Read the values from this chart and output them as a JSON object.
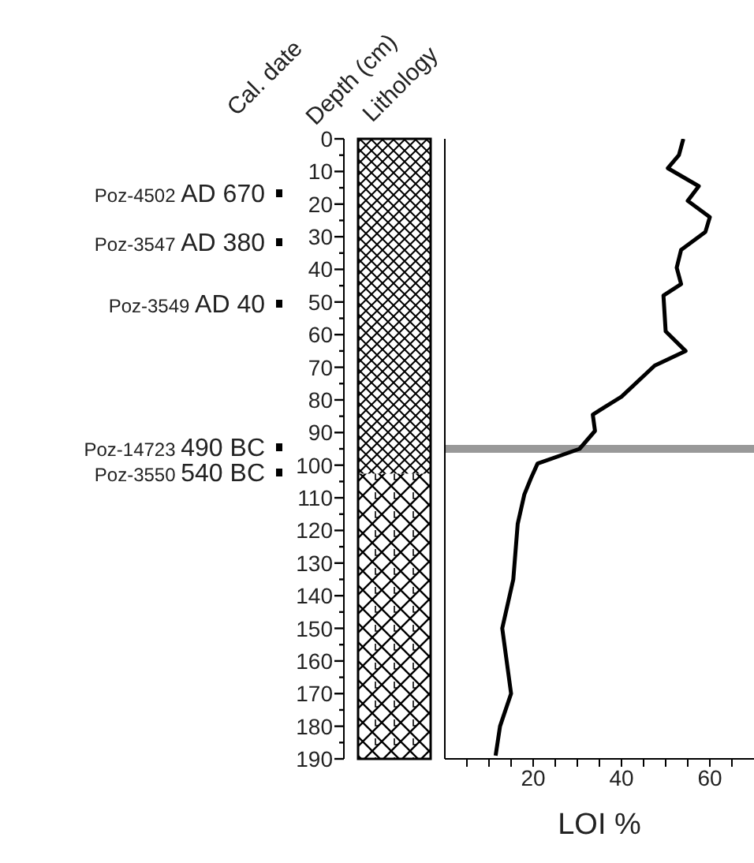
{
  "chart_data": {
    "type": "line",
    "xlabel": "LOI %",
    "ylabel": "Depth (cm)",
    "annotations": [
      "Cal. date",
      "Lithology",
      "Poz-4502 AD 670",
      "Poz-3547 AD 380",
      "Poz-3549 AD 40",
      "Poz-14723 490 BC",
      "Poz-3550 540 BC"
    ],
    "series": [
      {
        "color": "#000000",
        "x": [
          54,
          53,
          50.5,
          57.5,
          55,
          60,
          59,
          53.5,
          52.5,
          53.5,
          49.5,
          50,
          54.5,
          47.5,
          40,
          33.5,
          34,
          30.5,
          21,
          19.5,
          18,
          16.5,
          15.5,
          13,
          15,
          12.5,
          11.5
        ],
        "values": [
          0,
          5,
          9,
          14.5,
          19,
          24,
          28.5,
          34,
          39.5,
          44.5,
          48,
          59,
          65,
          69.5,
          79,
          84.5,
          89.5,
          95,
          99.5,
          104,
          109,
          118,
          135,
          150,
          170,
          180,
          189
        ]
      }
    ],
    "marker": "none",
    "line_style": "solid",
    "xlim": [
      0,
      70
    ],
    "xticks": [
      {
        "value": 5,
        "label": null
      },
      {
        "value": 10,
        "label": null
      },
      {
        "value": 15,
        "label": null
      },
      20,
      {
        "value": 25,
        "label": null
      },
      {
        "value": 30,
        "label": null
      },
      {
        "value": 35,
        "label": null
      },
      40,
      {
        "value": 45,
        "label": null
      },
      {
        "value": 50,
        "label": null
      },
      {
        "value": 55,
        "label": null
      },
      60,
      {
        "value": 65,
        "label": null
      }
    ],
    "ylim": [
      190,
      0
    ],
    "yticks": [
      0,
      10,
      20,
      30,
      40,
      50,
      60,
      70,
      80,
      90,
      100,
      110,
      120,
      130,
      140,
      150,
      160,
      170,
      180,
      190
    ],
    "ref_lines": [
      {
        "axis": "y",
        "value": 95,
        "color": "#999999"
      }
    ]
  }
}
